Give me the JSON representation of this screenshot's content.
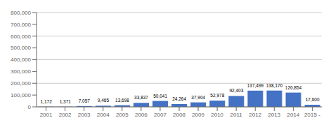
{
  "chart_data": {
    "type": "bar",
    "categories": [
      "2001",
      "2002",
      "2003",
      "2004",
      "2005",
      "2006",
      "2007",
      "2008",
      "2009",
      "2010",
      "2011",
      "2012",
      "2013",
      "2014",
      "2015 -"
    ],
    "values": [
      1172,
      1371,
      7057,
      9465,
      13698,
      33837,
      50041,
      24264,
      37904,
      52978,
      92403,
      137499,
      138170,
      120854,
      17600
    ],
    "value_labels": [
      "1,172",
      "1,371",
      "7,057",
      "9,465",
      "13,698",
      "33,837",
      "50,041",
      "24,264",
      "37,904",
      "52,978",
      "92,403",
      "137,499",
      "138,170",
      "120,854",
      "17,600"
    ],
    "color": "#4472C4",
    "ylim": [
      0,
      800000
    ],
    "yticks": [
      0,
      {
        "value": 100000,
        "label": "100,000"
      },
      {
        "value": 200000,
        "label": "200,000"
      },
      {
        "value": 300000,
        "label": "300,000"
      },
      {
        "value": 400000,
        "label": "400,000"
      },
      {
        "value": 500000,
        "label": "500,000"
      },
      {
        "value": 600000,
        "label": "600,000"
      },
      {
        "value": 700000,
        "label": "700,000"
      },
      {
        "value": 800000,
        "label": "800,000"
      }
    ],
    "grid": true,
    "data_labels": true
  }
}
